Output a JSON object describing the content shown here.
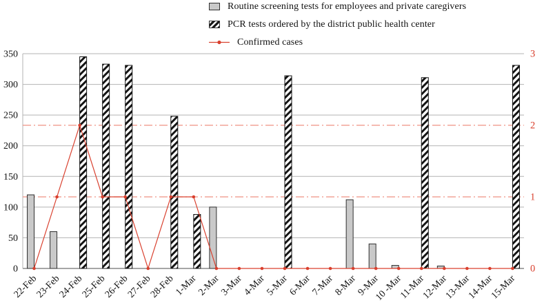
{
  "legend": [
    {
      "id": "routine",
      "label": "Routine screening tests for employees and private caregivers"
    },
    {
      "id": "pcr",
      "label": "PCR tests ordered by the district public health center"
    },
    {
      "id": "confirmed",
      "label": "Confirmed cases"
    }
  ],
  "chart_data": {
    "type": "bar",
    "title": "",
    "legend_position": "top",
    "grid": true,
    "categories": [
      "22-Feb",
      "23-Feb",
      "24-Feb",
      "25-Feb",
      "26-Feb",
      "27-Feb",
      "28-Feb",
      "1-Mar",
      "2-Mar",
      "3-Mar",
      "4-Mar",
      "5-Mar",
      "6-Mar",
      "7-Mar",
      "8-Mar",
      "9-Mar",
      "10 -Mar",
      "11-Mar",
      "12-Mar",
      "13-Mar",
      "14-Mar",
      "15-Mar"
    ],
    "series": [
      {
        "name": "Routine screening tests for employees and private caregivers",
        "type": "bar",
        "axis": "left",
        "values": [
          120,
          60,
          0,
          0,
          0,
          0,
          0,
          0,
          100,
          0,
          0,
          0,
          0,
          0,
          112,
          40,
          5,
          0,
          4,
          0,
          0,
          0
        ]
      },
      {
        "name": "PCR tests ordered by the district public health center",
        "type": "bar",
        "axis": "left",
        "values": [
          0,
          0,
          345,
          333,
          331,
          0,
          248,
          88,
          0,
          0,
          0,
          314,
          0,
          0,
          0,
          0,
          0,
          311,
          0,
          0,
          0,
          331
        ]
      },
      {
        "name": "Confirmed cases",
        "type": "line",
        "axis": "right",
        "values": [
          0,
          1,
          2,
          1,
          1,
          0,
          1,
          1,
          0,
          0,
          0,
          0,
          0,
          0,
          0,
          0,
          0,
          0,
          0,
          0,
          0,
          0
        ]
      }
    ],
    "left_axis": {
      "label": "",
      "min": 0,
      "max": 350,
      "step": 50
    },
    "right_axis": {
      "label": "",
      "min": 0,
      "max": 3,
      "step": 1
    },
    "reference_lines": [
      {
        "axis": "right",
        "value": 1
      },
      {
        "axis": "right",
        "value": 2
      }
    ],
    "colors": {
      "gray_bar": "#c9c9c9",
      "bar_outline": "#2f2f2f",
      "hatch_fg": "#141414",
      "line": "#d9402e",
      "reference_line": "#ef9082",
      "grid": "#b3b3b3",
      "axis": "#4d4d4d",
      "right_axis_text": "#d9402e",
      "text": "#111111"
    }
  }
}
